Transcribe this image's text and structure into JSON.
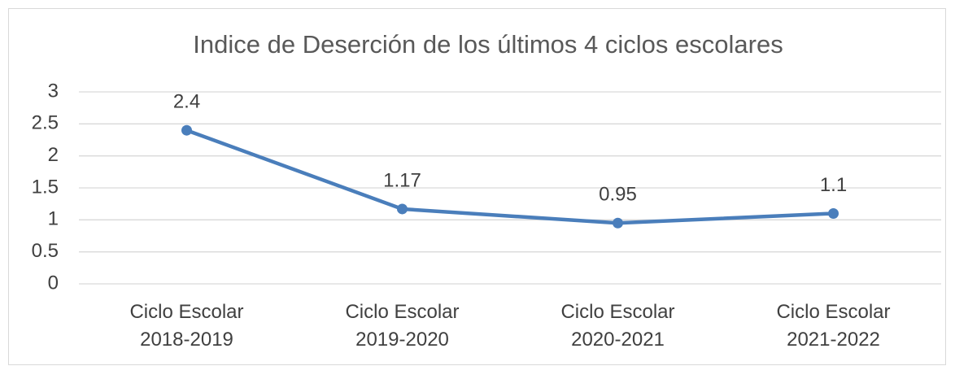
{
  "chart_data": {
    "type": "line",
    "title": "Indice de Deserción de los últimos 4 ciclos escolares",
    "categories": [
      "Ciclo Escolar 2018-2019",
      "Ciclo Escolar 2019-2020",
      "Ciclo Escolar 2020-2021",
      "Ciclo Escolar 2021-2022"
    ],
    "series": [
      {
        "name": "Indice de Deserción",
        "color": "#4a7ebb",
        "values": [
          2.4,
          1.17,
          0.95,
          1.1
        ]
      }
    ],
    "ylim": [
      0,
      3
    ],
    "yticks": [
      0,
      0.5,
      1,
      1.5,
      2,
      2.5,
      3
    ],
    "grid": true,
    "data_labels": true
  }
}
